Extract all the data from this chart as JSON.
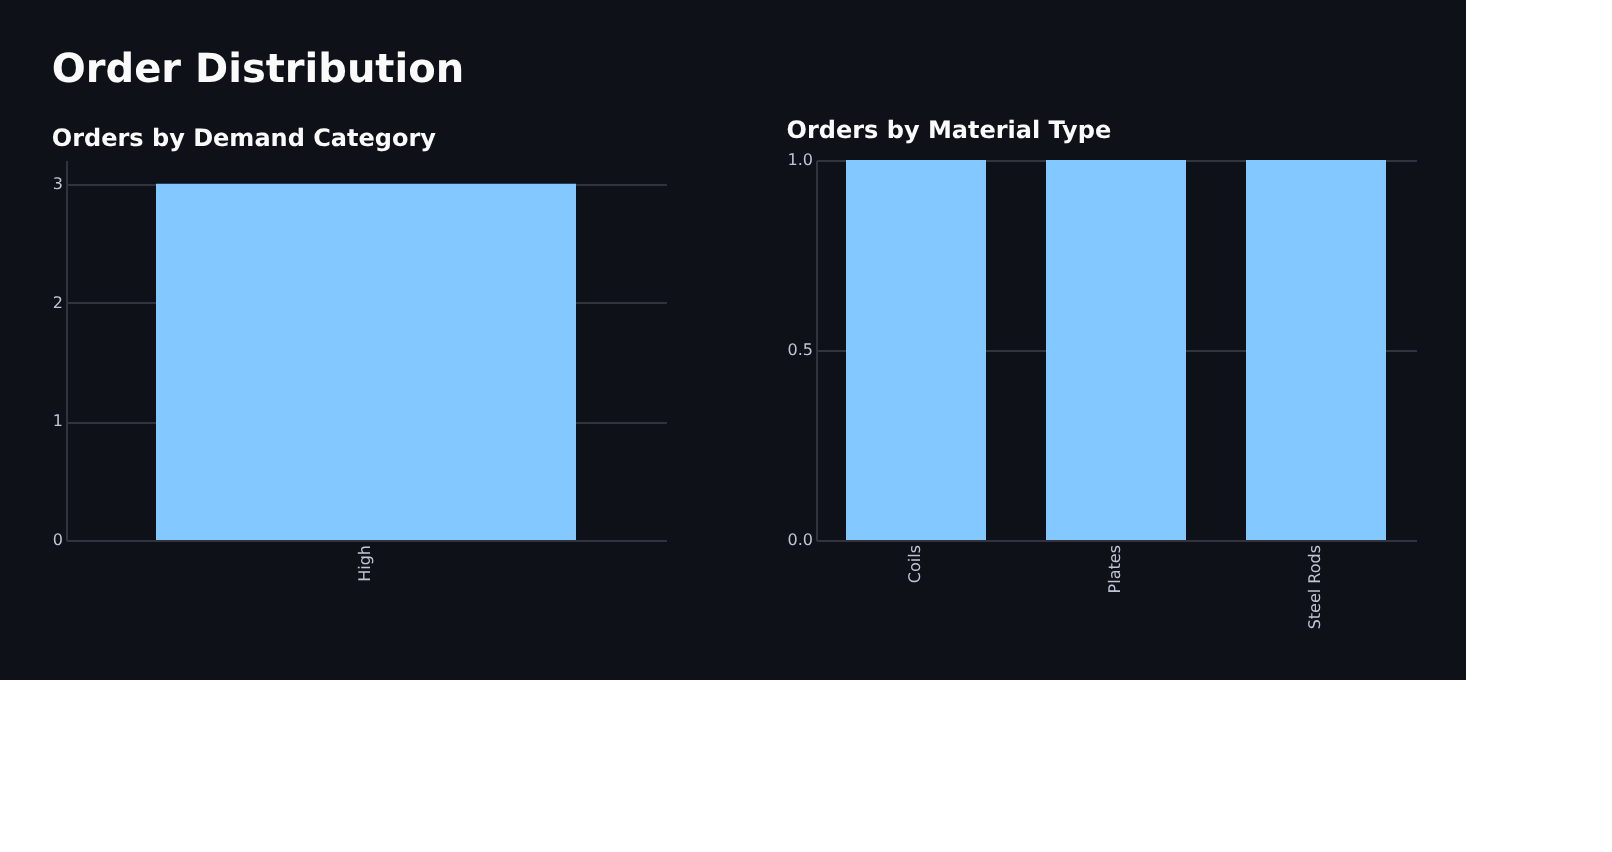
{
  "chart_data": [
    {
      "type": "bar",
      "title": "Orders by Demand Category",
      "annotations": [
        "Order Distribution"
      ],
      "categories": [
        "High"
      ],
      "values": [
        3
      ],
      "color": "#83c9ff",
      "ylim": [
        0,
        3.2
      ],
      "yticks": [
        0,
        1,
        2,
        3
      ],
      "grid": "y"
    },
    {
      "type": "bar",
      "title": "Orders by Material Type",
      "categories": [
        "Coils",
        "Plates",
        "Steel Rods"
      ],
      "values": [
        1,
        1,
        1
      ],
      "color": "#83c9ff",
      "ylim": [
        0,
        1
      ],
      "yticks": [
        {
          "value": 0,
          "label": "0.0"
        },
        {
          "value": 0.5,
          "label": "0.5"
        },
        {
          "value": 1,
          "label": "1.0"
        }
      ],
      "grid": "y"
    }
  ]
}
